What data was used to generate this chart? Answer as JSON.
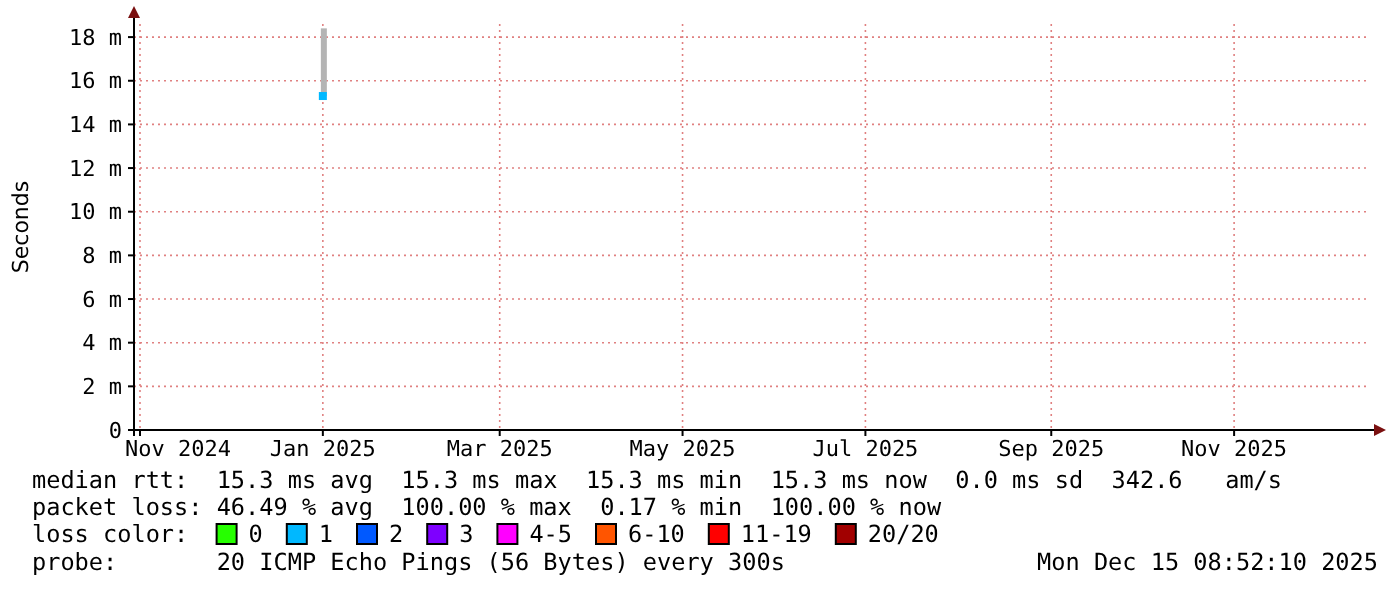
{
  "chart_data": {
    "type": "scatter",
    "ylabel": "Seconds",
    "legend_title": "loss color:",
    "legend": "bottom",
    "grid": true,
    "marker": "square",
    "x": [
      "2025-01-01"
    ],
    "xlim": [
      "2024-10-30",
      "2025-12-15"
    ],
    "xticks": [
      {
        "value": "2024-11-01",
        "label": "Nov 2024"
      },
      {
        "value": "2025-01-01",
        "label": "Jan 2025"
      },
      {
        "value": "2025-03-01",
        "label": "Mar 2025"
      },
      {
        "value": "2025-05-01",
        "label": "May 2025"
      },
      {
        "value": "2025-07-01",
        "label": "Jul 2025"
      },
      {
        "value": "2025-09-01",
        "label": "Sep 2025"
      },
      {
        "value": "2025-11-01",
        "label": "Nov 2025"
      }
    ],
    "ylim": [
      0,
      18.6
    ],
    "yticks": [
      0,
      {
        "value": 2,
        "label": "2 m"
      },
      {
        "value": 4,
        "label": "4 m"
      },
      {
        "value": 6,
        "label": "6 m"
      },
      {
        "value": 8,
        "label": "8 m"
      },
      {
        "value": 10,
        "label": "10 m"
      },
      {
        "value": 12,
        "label": "12 m"
      },
      {
        "value": 14,
        "label": "14 m"
      },
      {
        "value": 16,
        "label": "16 m"
      },
      {
        "value": 18,
        "label": "18 m"
      }
    ],
    "series": [
      {
        "type": "bar",
        "color": "#b4b4b4",
        "base": [
          15.3
        ],
        "values": [
          3.1
        ]
      },
      {
        "name": "0",
        "color": "#26ff00",
        "values": [
          null
        ]
      },
      {
        "name": "1",
        "color": "#00b8ff",
        "values": [
          15.3
        ]
      },
      {
        "name": "2",
        "color": "#0059ff",
        "values": [
          null
        ]
      },
      {
        "name": "3",
        "color": "#7e00ff",
        "values": [
          null
        ]
      },
      {
        "name": "4-5",
        "color": "#ff00ff",
        "values": [
          null
        ]
      },
      {
        "name": "6-10",
        "color": "#ff5500",
        "values": [
          null
        ]
      },
      {
        "name": "11-19",
        "color": "#ff0000",
        "values": [
          null
        ]
      },
      {
        "name": "20/20",
        "color": "#a10000",
        "values": [
          null
        ]
      }
    ],
    "annotations": [
      "median rtt:  15.3 ms avg  15.3 ms max  15.3 ms min  15.3 ms now  0.0 ms sd  342.6   am/s",
      "packet loss: 46.49 % avg  100.00 % max  0.17 % min  100.00 % now",
      "probe:       20 ICMP Echo Pings (56 Bytes) every 300s",
      "Mon Dec 15 08:52:10 2025"
    ]
  }
}
